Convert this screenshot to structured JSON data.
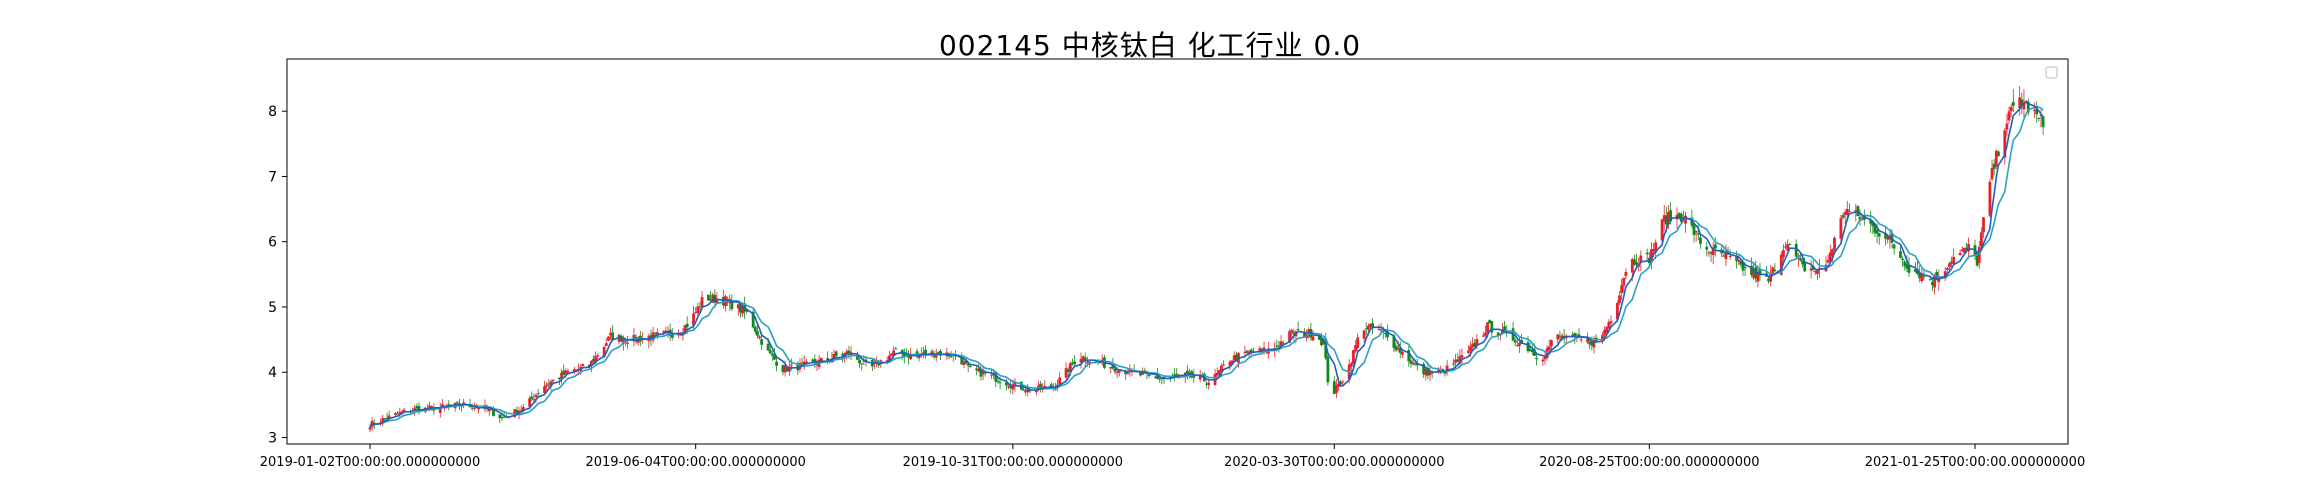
{
  "chart_data": {
    "type": "candlestick",
    "title": "002145 中核钛白 化工行业 0.0",
    "xlabel": "",
    "ylabel": "",
    "ylim": [
      2.9,
      8.8
    ],
    "yticks": [
      3,
      4,
      5,
      6,
      7,
      8
    ],
    "xtick_labels": [
      "2019-01-02T00:00:00.000000000",
      "2019-06-04T00:00:00.000000000",
      "2019-10-31T00:00:00.000000000",
      "2020-03-30T00:00:00.000000000",
      "2020-08-25T00:00:00.000000000",
      "2021-01-25T00:00:00.000000000"
    ],
    "xtick_dates": [
      "2019-01-02",
      "2019-06-04",
      "2019-10-31",
      "2020-03-30",
      "2020-08-25",
      "2021-01-25"
    ],
    "date_range": [
      "2019-01-02",
      "2021-02-26"
    ],
    "colors": {
      "up": "#e8202a",
      "down": "#0f8a1a",
      "ma_line": "#1f5fbf",
      "ma_line2": "#2ca0c0"
    },
    "legend": "top-right (empty)",
    "grid": false,
    "price_path": [
      [
        "2019-01-02",
        3.2
      ],
      [
        "2019-01-10",
        3.3
      ],
      [
        "2019-01-20",
        3.42
      ],
      [
        "2019-02-01",
        3.45
      ],
      [
        "2019-02-15",
        3.5
      ],
      [
        "2019-02-25",
        3.45
      ],
      [
        "2019-03-05",
        3.3
      ],
      [
        "2019-03-15",
        3.45
      ],
      [
        "2019-03-25",
        3.8
      ],
      [
        "2019-04-05",
        4.0
      ],
      [
        "2019-04-15",
        4.1
      ],
      [
        "2019-04-25",
        4.55
      ],
      [
        "2019-05-05",
        4.5
      ],
      [
        "2019-05-15",
        4.55
      ],
      [
        "2019-05-25",
        4.6
      ],
      [
        "2019-06-01",
        4.75
      ],
      [
        "2019-06-08",
        5.15
      ],
      [
        "2019-06-18",
        5.1
      ],
      [
        "2019-06-28",
        4.9
      ],
      [
        "2019-07-08",
        4.3
      ],
      [
        "2019-07-15",
        4.05
      ],
      [
        "2019-07-25",
        4.1
      ],
      [
        "2019-08-05",
        4.2
      ],
      [
        "2019-08-15",
        4.3
      ],
      [
        "2019-08-25",
        4.05
      ],
      [
        "2019-09-05",
        4.3
      ],
      [
        "2019-09-15",
        4.25
      ],
      [
        "2019-09-25",
        4.3
      ],
      [
        "2019-10-05",
        4.25
      ],
      [
        "2019-10-10",
        4.05
      ],
      [
        "2019-10-20",
        3.95
      ],
      [
        "2019-10-31",
        3.8
      ],
      [
        "2019-11-10",
        3.72
      ],
      [
        "2019-11-20",
        3.8
      ],
      [
        "2019-12-01",
        4.25
      ],
      [
        "2019-12-10",
        4.15
      ],
      [
        "2019-12-20",
        4.05
      ],
      [
        "2019-12-31",
        3.95
      ],
      [
        "2020-01-10",
        3.9
      ],
      [
        "2020-01-20",
        3.95
      ],
      [
        "2020-02-01",
        3.85
      ],
      [
        "2020-02-10",
        4.2
      ],
      [
        "2020-02-20",
        4.3
      ],
      [
        "2020-03-01",
        4.35
      ],
      [
        "2020-03-10",
        4.6
      ],
      [
        "2020-03-20",
        4.6
      ],
      [
        "2020-03-25",
        4.45
      ],
      [
        "2020-03-28",
        3.6
      ],
      [
        "2020-04-05",
        4.0
      ],
      [
        "2020-04-12",
        4.7
      ],
      [
        "2020-04-20",
        4.65
      ],
      [
        "2020-05-01",
        4.3
      ],
      [
        "2020-05-10",
        4.0
      ],
      [
        "2020-05-20",
        4.0
      ],
      [
        "2020-06-01",
        4.3
      ],
      [
        "2020-06-10",
        4.7
      ],
      [
        "2020-06-20",
        4.55
      ],
      [
        "2020-06-28",
        4.4
      ],
      [
        "2020-07-05",
        4.2
      ],
      [
        "2020-07-12",
        4.55
      ],
      [
        "2020-07-22",
        4.5
      ],
      [
        "2020-08-01",
        4.45
      ],
      [
        "2020-08-08",
        4.9
      ],
      [
        "2020-08-15",
        5.7
      ],
      [
        "2020-08-25",
        5.75
      ],
      [
        "2020-09-01",
        6.35
      ],
      [
        "2020-09-10",
        6.4
      ],
      [
        "2020-09-20",
        5.9
      ],
      [
        "2020-10-01",
        5.75
      ],
      [
        "2020-10-10",
        5.55
      ],
      [
        "2020-10-20",
        5.4
      ],
      [
        "2020-10-28",
        6.0
      ],
      [
        "2020-11-05",
        5.6
      ],
      [
        "2020-11-15",
        5.55
      ],
      [
        "2020-11-25",
        6.5
      ],
      [
        "2020-12-05",
        6.3
      ],
      [
        "2020-12-15",
        6.05
      ],
      [
        "2020-12-25",
        5.6
      ],
      [
        "2021-01-05",
        5.4
      ],
      [
        "2021-01-15",
        5.75
      ],
      [
        "2021-01-22",
        5.9
      ],
      [
        "2021-01-26",
        5.7
      ],
      [
        "2021-02-01",
        6.9
      ],
      [
        "2021-02-08",
        7.8
      ],
      [
        "2021-02-15",
        8.2
      ],
      [
        "2021-02-26",
        7.8
      ]
    ]
  }
}
